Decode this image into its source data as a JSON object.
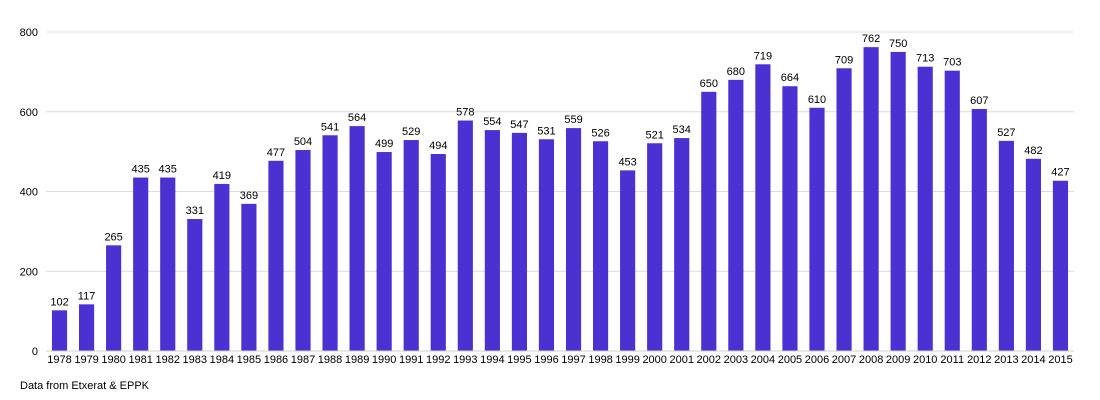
{
  "chart_data": {
    "type": "bar",
    "categories": [
      "1978",
      "1979",
      "1980",
      "1981",
      "1982",
      "1983",
      "1984",
      "1985",
      "1986",
      "1987",
      "1988",
      "1989",
      "1990",
      "1991",
      "1992",
      "1993",
      "1994",
      "1995",
      "1996",
      "1997",
      "1998",
      "1999",
      "2000",
      "2001",
      "2002",
      "2003",
      "2004",
      "2005",
      "2006",
      "2007",
      "2008",
      "2009",
      "2010",
      "2011",
      "2012",
      "2013",
      "2014",
      "2015"
    ],
    "values": [
      102,
      117,
      265,
      435,
      435,
      331,
      419,
      369,
      477,
      504,
      541,
      564,
      499,
      529,
      494,
      578,
      554,
      547,
      531,
      559,
      526,
      453,
      521,
      534,
      650,
      680,
      719,
      664,
      610,
      709,
      762,
      750,
      713,
      703,
      607,
      527,
      482,
      427
    ],
    "ylim": [
      0,
      800
    ],
    "yticks": [
      0,
      200,
      400,
      600,
      800
    ],
    "grid": true,
    "bar_color": "#4b31d1",
    "grid_color": "#dcdcdc",
    "data_labels": true
  },
  "source_note": "Data from Etxerat & EPPK"
}
